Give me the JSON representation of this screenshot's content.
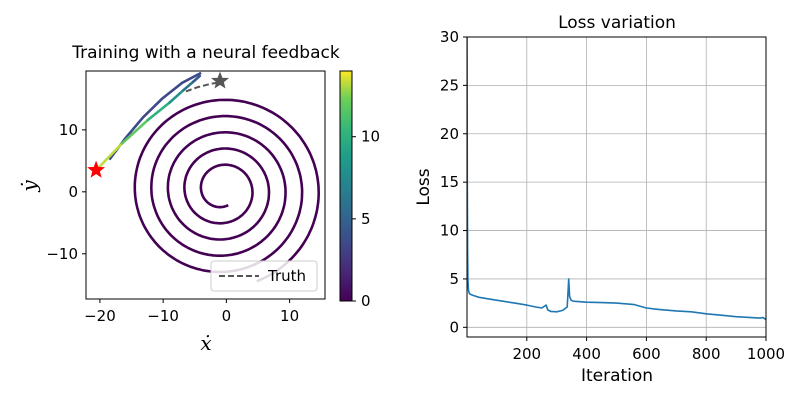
{
  "chart_data": [
    {
      "type": "line",
      "title": "Training with a neural feedback",
      "xlabel": "ẋ",
      "ylabel": "ẏ",
      "xlim": [
        -22.2,
        15.6
      ],
      "ylim": [
        -17.3,
        19.5
      ],
      "xticks": [
        -20,
        -10,
        0,
        10
      ],
      "xtick_labels": [
        "−20",
        "−10",
        "0",
        "10"
      ],
      "yticks": [
        -10,
        0,
        10
      ],
      "ytick_labels": [
        "−10",
        "0",
        "10"
      ],
      "colormap": "viridis",
      "colorbar": {
        "min": 0,
        "max": 14,
        "ticks": [
          0,
          5,
          10
        ],
        "tick_labels": [
          "0",
          "5",
          "10"
        ]
      },
      "spiral": {
        "center": [
          -0.6,
          0.3
        ],
        "r_start": 2.6,
        "r_end": 15.7,
        "turns": 5,
        "color": "#440154"
      },
      "trajectory_tail": [
        {
          "x": -20.6,
          "y": 3.5,
          "c": 14
        },
        {
          "x": -16.5,
          "y": 7.8,
          "c": 12.5
        },
        {
          "x": -12.4,
          "y": 11.6,
          "c": 11
        },
        {
          "x": -9.0,
          "y": 14.4,
          "c": 9
        },
        {
          "x": -6.8,
          "y": 16.4,
          "c": 7
        },
        {
          "x": -5.2,
          "y": 17.8,
          "c": 5
        },
        {
          "x": -4.2,
          "y": 18.7,
          "c": 4
        }
      ],
      "trajectory_upper": [
        {
          "x": -4.0,
          "y": 19.2
        },
        {
          "x": -7.0,
          "y": 17.6
        },
        {
          "x": -10.2,
          "y": 15.0
        },
        {
          "x": -13.2,
          "y": 12.0
        },
        {
          "x": -16.0,
          "y": 8.6
        },
        {
          "x": -18.5,
          "y": 5.2
        }
      ],
      "truth": {
        "name": "Truth",
        "x": [
          -6.4,
          -4.5,
          -2.6,
          -1.0
        ],
        "y": [
          16.2,
          16.9,
          17.4,
          17.7
        ],
        "color": "#555555"
      },
      "markers": [
        {
          "x": -20.6,
          "y": 3.5,
          "color": "#ff0000",
          "shape": "star"
        },
        {
          "x": -1.0,
          "y": 17.9,
          "color": "#555555",
          "shape": "star"
        }
      ],
      "legend": {
        "placement": "lower-right",
        "entries": [
          "Truth"
        ]
      }
    },
    {
      "type": "line",
      "title": "Loss variation",
      "xlabel": "Iteration",
      "ylabel": "Loss",
      "xlim": [
        0,
        1000
      ],
      "ylim": [
        -1,
        30
      ],
      "xticks": [
        200,
        400,
        600,
        800,
        1000
      ],
      "yticks": [
        0,
        5,
        10,
        15,
        20,
        25,
        30
      ],
      "grid": true,
      "color": "#1f77b4",
      "series": [
        {
          "x": [
            0,
            1,
            2,
            3,
            5,
            8,
            12,
            20,
            40,
            80,
            120,
            160,
            200,
            230,
            250,
            265,
            270,
            280,
            300,
            320,
            335,
            338,
            340,
            343,
            348,
            355,
            400,
            450,
            500,
            560,
            600,
            640,
            700,
            750,
            800,
            850,
            900,
            950,
            980,
            990,
            1000
          ],
          "y": [
            30,
            15,
            8,
            5,
            3.8,
            3.5,
            3.4,
            3.3,
            3.1,
            2.9,
            2.7,
            2.5,
            2.3,
            2.1,
            2.0,
            2.3,
            1.8,
            1.65,
            1.6,
            1.75,
            2.1,
            3.8,
            5.0,
            3.2,
            2.8,
            2.7,
            2.6,
            2.55,
            2.5,
            2.35,
            2.0,
            1.85,
            1.7,
            1.6,
            1.4,
            1.25,
            1.1,
            1.0,
            0.95,
            1.0,
            0.8
          ]
        }
      ]
    }
  ]
}
